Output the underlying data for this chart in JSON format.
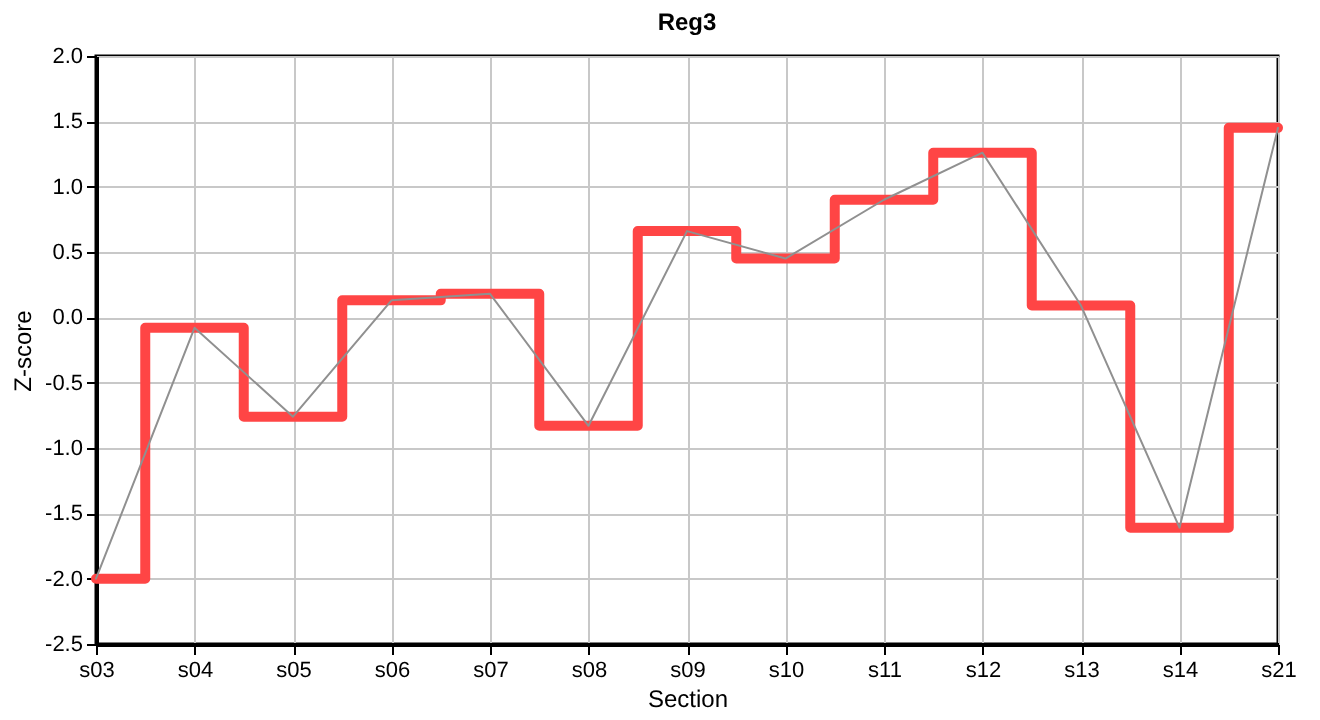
{
  "chart_data": {
    "type": "step",
    "title": "Reg3",
    "xlabel": "Section",
    "ylabel": "Z-score",
    "categories": [
      "s03",
      "s04",
      "s05",
      "s06",
      "s07",
      "s08",
      "s09",
      "s10",
      "s11",
      "s12",
      "s13",
      "s14",
      "s21"
    ],
    "series": [
      {
        "color": "#ff4545",
        "values": [
          -2.0,
          -0.08,
          -0.76,
          0.13,
          0.18,
          -0.83,
          0.66,
          0.45,
          0.9,
          1.26,
          0.09,
          -1.61,
          1.45
        ]
      },
      {
        "type": "line",
        "color": "#909090",
        "values": [
          -2.0,
          -0.08,
          -0.76,
          0.13,
          0.18,
          -0.83,
          0.66,
          0.45,
          0.9,
          1.26,
          0.09,
          -1.61,
          1.45
        ]
      }
    ],
    "ylim": [
      -2.5,
      2.0
    ],
    "yticks": [
      {
        "value": -2.5,
        "label": "-2.5"
      },
      {
        "value": -2,
        "label": "-2.0"
      },
      {
        "value": -1.5,
        "label": "-1.5"
      },
      {
        "value": -1,
        "label": "-1.0"
      },
      {
        "value": -0.5,
        "label": "-0.5"
      },
      {
        "value": 0,
        "label": "0.0"
      },
      {
        "value": 0.5,
        "label": "0.5"
      },
      {
        "value": 1,
        "label": "1.0"
      },
      {
        "value": 1.5,
        "label": "1.5"
      },
      {
        "value": 2,
        "label": "2.0"
      }
    ],
    "grid": true
  }
}
